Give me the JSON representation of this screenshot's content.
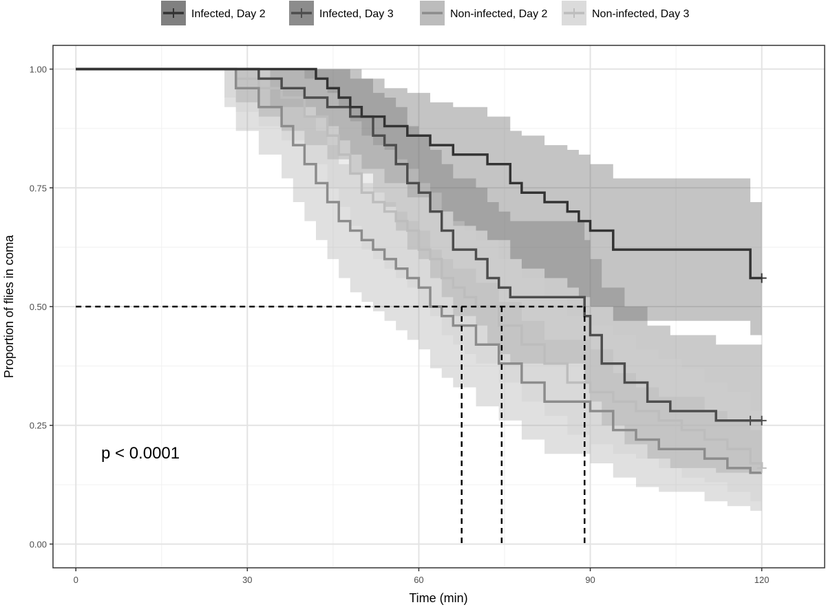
{
  "chart_data": {
    "type": "line",
    "subtype": "kaplan-meier survival curves with confidence bands",
    "xlabel": "Time (min)",
    "ylabel": "Proportion of flies in coma",
    "xlim": [
      -4,
      131
    ],
    "ylim": [
      -0.05,
      1.05
    ],
    "x_ticks": [
      0,
      30,
      60,
      90,
      120
    ],
    "y_ticks": [
      0.0,
      0.25,
      0.5,
      0.75,
      1.0
    ],
    "x_tick_labels": [
      "0",
      "30",
      "60",
      "90",
      "120"
    ],
    "y_tick_labels": [
      "0.00",
      "0.25",
      "0.50",
      "0.75",
      "1.00"
    ],
    "grid": true,
    "legend_position": "top",
    "annotation": "p < 0.0001",
    "median_reference_y": 0.5,
    "medians": [
      67.5,
      74.5,
      89
    ],
    "series": [
      {
        "name": "Infected, Day 2",
        "color": "#333333",
        "band_color": "#555555",
        "band_opacity": 0.35,
        "x": [
          0,
          34,
          42,
          44,
          46,
          48,
          50,
          54,
          58,
          62,
          66,
          70,
          72,
          76,
          78,
          82,
          86,
          88,
          90,
          94,
          100,
          104,
          110,
          118,
          120
        ],
        "y": [
          1.0,
          1.0,
          0.98,
          0.96,
          0.94,
          0.92,
          0.9,
          0.88,
          0.86,
          0.84,
          0.82,
          0.82,
          0.8,
          0.76,
          0.74,
          0.72,
          0.7,
          0.68,
          0.66,
          0.62,
          0.62,
          0.62,
          0.62,
          0.56,
          0.56
        ],
        "lower": [
          1.0,
          0.92,
          0.9,
          0.88,
          0.85,
          0.82,
          0.79,
          0.76,
          0.73,
          0.7,
          0.67,
          0.66,
          0.64,
          0.6,
          0.58,
          0.56,
          0.54,
          0.52,
          0.5,
          0.47,
          0.47,
          0.47,
          0.47,
          0.44,
          0.44
        ],
        "upper": [
          1.0,
          1.0,
          1.0,
          1.0,
          1.0,
          1.0,
          0.98,
          0.96,
          0.95,
          0.93,
          0.92,
          0.92,
          0.9,
          0.87,
          0.86,
          0.84,
          0.83,
          0.82,
          0.8,
          0.77,
          0.77,
          0.77,
          0.77,
          0.72,
          0.72
        ],
        "censor_x": [
          120
        ],
        "censor_y": [
          0.56
        ]
      },
      {
        "name": "Infected, Day 3",
        "color": "#4d4d4d",
        "band_color": "#666666",
        "band_opacity": 0.35,
        "x": [
          0,
          28,
          32,
          36,
          40,
          44,
          48,
          52,
          54,
          56,
          58,
          60,
          62,
          64,
          66,
          70,
          72,
          74,
          76,
          78,
          80,
          84,
          88,
          89,
          90,
          92,
          96,
          100,
          104,
          108,
          112,
          116,
          120
        ],
        "y": [
          1.0,
          1.0,
          0.98,
          0.96,
          0.94,
          0.92,
          0.9,
          0.86,
          0.84,
          0.8,
          0.76,
          0.74,
          0.7,
          0.66,
          0.62,
          0.6,
          0.56,
          0.54,
          0.52,
          0.52,
          0.52,
          0.52,
          0.52,
          0.48,
          0.44,
          0.38,
          0.34,
          0.3,
          0.28,
          0.28,
          0.26,
          0.26,
          0.26
        ],
        "lower": [
          1.0,
          0.93,
          0.9,
          0.87,
          0.84,
          0.81,
          0.78,
          0.74,
          0.71,
          0.66,
          0.62,
          0.6,
          0.56,
          0.52,
          0.48,
          0.46,
          0.42,
          0.4,
          0.38,
          0.38,
          0.38,
          0.38,
          0.38,
          0.34,
          0.3,
          0.25,
          0.21,
          0.18,
          0.16,
          0.16,
          0.15,
          0.15,
          0.15
        ],
        "upper": [
          1.0,
          1.0,
          1.0,
          1.0,
          1.0,
          1.0,
          0.98,
          0.95,
          0.94,
          0.92,
          0.88,
          0.86,
          0.83,
          0.8,
          0.77,
          0.75,
          0.72,
          0.7,
          0.68,
          0.68,
          0.68,
          0.68,
          0.68,
          0.64,
          0.6,
          0.54,
          0.5,
          0.46,
          0.44,
          0.44,
          0.42,
          0.42,
          0.42
        ],
        "censor_x": [
          118,
          120
        ],
        "censor_y": [
          0.26,
          0.26
        ]
      },
      {
        "name": "Non-infected, Day 2",
        "color": "#8c8c8c",
        "band_color": "#a6a6a6",
        "band_opacity": 0.35,
        "x": [
          0,
          26,
          28,
          32,
          36,
          38,
          40,
          42,
          44,
          46,
          48,
          50,
          52,
          54,
          56,
          58,
          60,
          62,
          64,
          66,
          70,
          74,
          78,
          82,
          86,
          90,
          94,
          98,
          102,
          106,
          110,
          114,
          118,
          120
        ],
        "y": [
          1.0,
          1.0,
          0.96,
          0.92,
          0.88,
          0.84,
          0.8,
          0.76,
          0.72,
          0.68,
          0.66,
          0.64,
          0.62,
          0.6,
          0.58,
          0.56,
          0.54,
          0.5,
          0.48,
          0.46,
          0.42,
          0.38,
          0.34,
          0.3,
          0.3,
          0.28,
          0.24,
          0.22,
          0.2,
          0.2,
          0.18,
          0.16,
          0.15,
          0.15
        ],
        "lower": [
          1.0,
          0.92,
          0.87,
          0.82,
          0.77,
          0.72,
          0.68,
          0.64,
          0.6,
          0.56,
          0.53,
          0.51,
          0.49,
          0.47,
          0.45,
          0.43,
          0.41,
          0.37,
          0.35,
          0.33,
          0.29,
          0.26,
          0.22,
          0.19,
          0.19,
          0.17,
          0.14,
          0.12,
          0.11,
          0.11,
          0.09,
          0.08,
          0.07,
          0.07
        ],
        "upper": [
          1.0,
          1.0,
          1.0,
          0.98,
          0.96,
          0.93,
          0.9,
          0.87,
          0.84,
          0.8,
          0.78,
          0.76,
          0.74,
          0.72,
          0.7,
          0.68,
          0.66,
          0.62,
          0.6,
          0.58,
          0.55,
          0.51,
          0.47,
          0.43,
          0.43,
          0.41,
          0.36,
          0.33,
          0.31,
          0.31,
          0.28,
          0.26,
          0.24,
          0.24
        ],
        "censor_x": [],
        "censor_y": []
      },
      {
        "name": "Non-infected, Day 3",
        "color": "#bdbdbd",
        "band_color": "#cfcfcf",
        "band_opacity": 0.4,
        "x": [
          0,
          26,
          28,
          32,
          36,
          40,
          44,
          46,
          48,
          50,
          52,
          54,
          56,
          58,
          60,
          62,
          64,
          66,
          68,
          70,
          74,
          78,
          82,
          86,
          90,
          94,
          98,
          102,
          106,
          110,
          114,
          118,
          120
        ],
        "y": [
          1.0,
          1.0,
          0.98,
          0.96,
          0.94,
          0.9,
          0.86,
          0.82,
          0.78,
          0.74,
          0.72,
          0.7,
          0.68,
          0.66,
          0.62,
          0.6,
          0.56,
          0.54,
          0.52,
          0.5,
          0.46,
          0.42,
          0.38,
          0.34,
          0.32,
          0.3,
          0.28,
          0.26,
          0.24,
          0.22,
          0.2,
          0.17,
          0.16
        ],
        "lower": [
          1.0,
          0.94,
          0.91,
          0.88,
          0.85,
          0.8,
          0.75,
          0.71,
          0.67,
          0.62,
          0.6,
          0.58,
          0.56,
          0.54,
          0.5,
          0.48,
          0.44,
          0.42,
          0.4,
          0.38,
          0.34,
          0.3,
          0.27,
          0.23,
          0.21,
          0.19,
          0.18,
          0.16,
          0.14,
          0.13,
          0.11,
          0.09,
          0.08
        ],
        "upper": [
          1.0,
          1.0,
          1.0,
          1.0,
          1.0,
          0.98,
          0.95,
          0.92,
          0.89,
          0.86,
          0.84,
          0.83,
          0.81,
          0.79,
          0.76,
          0.74,
          0.7,
          0.68,
          0.66,
          0.64,
          0.6,
          0.56,
          0.52,
          0.48,
          0.46,
          0.44,
          0.41,
          0.39,
          0.37,
          0.34,
          0.32,
          0.28,
          0.27
        ],
        "censor_x": [
          120
        ],
        "censor_y": [
          0.16
        ]
      }
    ]
  }
}
